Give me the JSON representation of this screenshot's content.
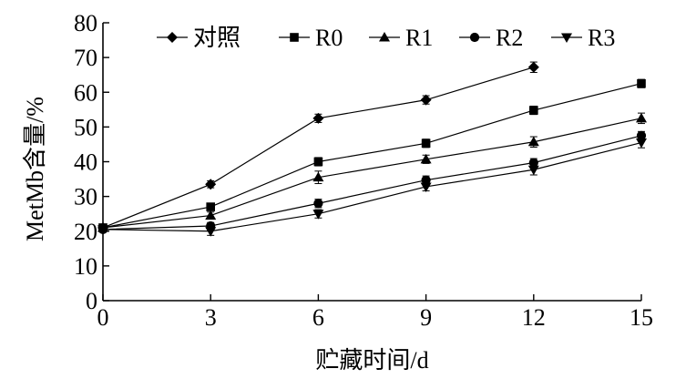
{
  "chart_data": {
    "type": "line",
    "xlabel": "贮藏时间/d",
    "ylabel": "MetMb含量/%",
    "x": [
      0,
      3,
      6,
      9,
      12,
      15
    ],
    "xlim": [
      0,
      15
    ],
    "ylim": [
      0,
      80
    ],
    "xticks": [
      0,
      3,
      6,
      9,
      12,
      15
    ],
    "yticks": [
      0,
      10,
      20,
      30,
      40,
      50,
      60,
      70,
      80
    ],
    "grid": false,
    "legend_position": "top",
    "series": [
      {
        "name": "对照",
        "marker": "diamond",
        "values": [
          21.0,
          33.5,
          52.5,
          57.8,
          67.2,
          null
        ],
        "errors": [
          0.8,
          1.0,
          1.2,
          1.2,
          1.5,
          null
        ]
      },
      {
        "name": "R0",
        "marker": "square",
        "values": [
          21.0,
          27.0,
          40.0,
          45.3,
          54.8,
          62.5
        ],
        "errors": [
          0.8,
          1.0,
          1.2,
          1.2,
          1.2,
          1.2
        ]
      },
      {
        "name": "R1",
        "marker": "triangle-up",
        "values": [
          21.0,
          24.5,
          35.5,
          40.7,
          45.7,
          52.5
        ],
        "errors": [
          0.8,
          1.0,
          1.8,
          1.2,
          1.5,
          1.5
        ]
      },
      {
        "name": "R2",
        "marker": "circle",
        "values": [
          20.5,
          21.5,
          28.0,
          34.7,
          39.7,
          47.5
        ],
        "errors": [
          0.8,
          1.0,
          1.2,
          1.2,
          1.2,
          1.2
        ]
      },
      {
        "name": "R3",
        "marker": "triangle-down",
        "values": [
          20.5,
          20.0,
          25.0,
          32.8,
          37.7,
          45.5
        ],
        "errors": [
          0.8,
          1.2,
          1.2,
          1.2,
          1.5,
          1.5
        ]
      }
    ]
  }
}
